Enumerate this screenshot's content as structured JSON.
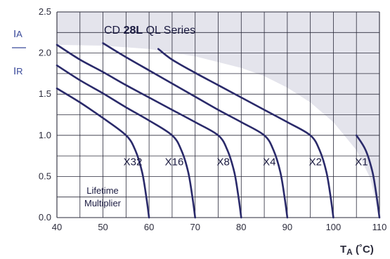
{
  "chart_data": {
    "type": "line",
    "title_prefix": "CD ",
    "title_bold": "28L",
    "title_suffix": " QL Series",
    "ylabel_top": "I",
    "ylabel_top_sub": "A",
    "ylabel_bottom": "I",
    "ylabel_bottom_sub": "R",
    "xlabel_main": "T",
    "xlabel_sub": "A",
    "xlabel_unit": " (˚C)",
    "xlim": [
      40,
      110
    ],
    "ylim": [
      0,
      2.5
    ],
    "xticks": [
      40,
      50,
      60,
      70,
      80,
      90,
      100,
      110
    ],
    "yticks": [
      "0.0",
      "0.5",
      "1.0",
      "1.5",
      "2.0",
      "2.5"
    ],
    "grid": true,
    "annotation_line1": "Lifetime",
    "annotation_line2": "Multiplier",
    "series": [
      {
        "name": "X32",
        "label_x": 58.5,
        "label_y": 0.68,
        "points": [
          [
            40,
            1.57
          ],
          [
            45,
            1.4
          ],
          [
            50,
            1.21
          ],
          [
            55,
            1.0
          ],
          [
            57,
            0.82
          ],
          [
            58.5,
            0.55
          ],
          [
            59.4,
            0.25
          ],
          [
            60,
            0
          ]
        ]
      },
      {
        "name": "X16",
        "label_x": 67.5,
        "label_y": 0.68,
        "points": [
          [
            40,
            1.85
          ],
          [
            45,
            1.67
          ],
          [
            50,
            1.51
          ],
          [
            55,
            1.34
          ],
          [
            60,
            1.18
          ],
          [
            65,
            1.0
          ],
          [
            67,
            0.82
          ],
          [
            68.5,
            0.55
          ],
          [
            69.4,
            0.25
          ],
          [
            70,
            0
          ]
        ]
      },
      {
        "name": "X8",
        "label_x": 77.5,
        "label_y": 0.68,
        "points": [
          [
            40,
            2.1
          ],
          [
            45,
            1.92
          ],
          [
            50,
            1.77
          ],
          [
            55,
            1.61
          ],
          [
            60,
            1.46
          ],
          [
            65,
            1.31
          ],
          [
            70,
            1.16
          ],
          [
            75,
            1.0
          ],
          [
            77,
            0.82
          ],
          [
            78.5,
            0.55
          ],
          [
            79.4,
            0.25
          ],
          [
            80,
            0
          ]
        ]
      },
      {
        "name": "X4",
        "label_x": 87.5,
        "label_y": 0.68,
        "points": [
          [
            50,
            2.12
          ],
          [
            55,
            1.95
          ],
          [
            60,
            1.79
          ],
          [
            65,
            1.63
          ],
          [
            70,
            1.47
          ],
          [
            75,
            1.31
          ],
          [
            80,
            1.16
          ],
          [
            85,
            1.0
          ],
          [
            87,
            0.82
          ],
          [
            88.5,
            0.55
          ],
          [
            89.4,
            0.25
          ],
          [
            90,
            0
          ]
        ]
      },
      {
        "name": "X2",
        "label_x": 97.5,
        "label_y": 0.68,
        "points": [
          [
            62,
            2.05
          ],
          [
            65,
            1.92
          ],
          [
            70,
            1.76
          ],
          [
            75,
            1.61
          ],
          [
            80,
            1.46
          ],
          [
            85,
            1.31
          ],
          [
            90,
            1.16
          ],
          [
            95,
            1.0
          ],
          [
            97,
            0.82
          ],
          [
            98.5,
            0.55
          ],
          [
            99.4,
            0.25
          ],
          [
            100,
            0
          ]
        ]
      },
      {
        "name": "X1",
        "label_x": 107.5,
        "label_y": 0.68,
        "points": [
          [
            105,
            1.0
          ],
          [
            107,
            0.82
          ],
          [
            108.5,
            0.55
          ],
          [
            109.4,
            0.25
          ],
          [
            110,
            0
          ]
        ]
      }
    ],
    "shaded_region_boundary": [
      [
        40,
        2.1
      ],
      [
        50,
        2.09
      ],
      [
        60,
        2.05
      ],
      [
        70,
        1.96
      ],
      [
        80,
        1.82
      ],
      [
        85,
        1.72
      ],
      [
        90,
        1.58
      ],
      [
        95,
        1.4
      ],
      [
        100,
        1.16
      ],
      [
        105,
        0.82
      ],
      [
        108,
        0.48
      ],
      [
        110,
        0
      ]
    ],
    "colors": {
      "curve": "#2a2a6a",
      "shade": "#e4e4ec",
      "grid": "#2a2a3a",
      "axis_label": "#3a4a9a"
    }
  }
}
